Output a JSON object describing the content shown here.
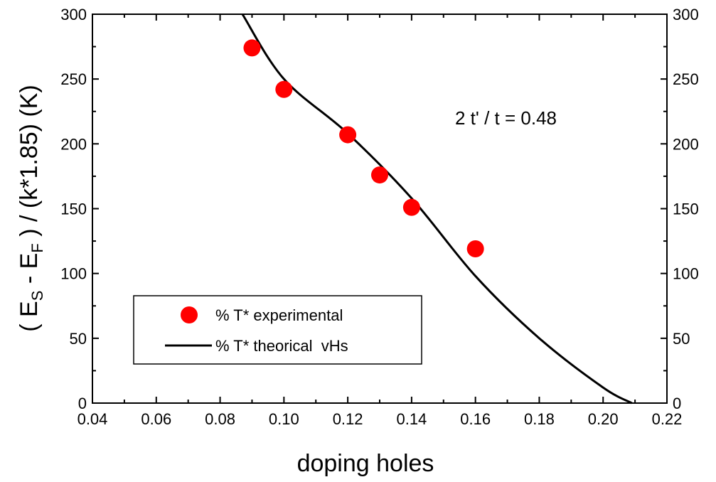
{
  "chart_data": {
    "type": "scatter",
    "xlabel": "doping holes",
    "ylabel": {
      "prefix": "( E",
      "sub_s": "S",
      "middle": " - E",
      "sub_f": "F",
      "suffix": " ) / (k*1.85) (K)"
    },
    "xlim": [
      0.04,
      0.22
    ],
    "ylim": [
      0,
      300
    ],
    "x_ticks": [
      "0.04",
      "0.06",
      "0.08",
      "0.10",
      "0.12",
      "0.14",
      "0.16",
      "0.18",
      "0.20",
      "0.22"
    ],
    "y_ticks": [
      "0",
      "50",
      "100",
      "150",
      "200",
      "250",
      "300"
    ],
    "y_ticks_right": [
      "0",
      "50",
      "100",
      "150",
      "200",
      "250",
      "300"
    ],
    "grid": false,
    "legend_position": "bottom-left",
    "annotation": "2 t' / t = 0.48",
    "series": [
      {
        "name": "% T* experimental",
        "kind": "scatter",
        "color": "#ff0000",
        "points": [
          {
            "x": 0.09,
            "y": 274
          },
          {
            "x": 0.1,
            "y": 242
          },
          {
            "x": 0.12,
            "y": 207
          },
          {
            "x": 0.13,
            "y": 176
          },
          {
            "x": 0.14,
            "y": 151
          },
          {
            "x": 0.16,
            "y": 119
          }
        ]
      },
      {
        "name": "% T* theorical  vHs",
        "kind": "line",
        "color": "#000000",
        "points": [
          {
            "x": 0.087,
            "y": 300
          },
          {
            "x": 0.1,
            "y": 250
          },
          {
            "x": 0.12,
            "y": 208
          },
          {
            "x": 0.14,
            "y": 158
          },
          {
            "x": 0.16,
            "y": 98
          },
          {
            "x": 0.18,
            "y": 50
          },
          {
            "x": 0.2,
            "y": 12
          },
          {
            "x": 0.209,
            "y": 0
          }
        ]
      }
    ]
  }
}
